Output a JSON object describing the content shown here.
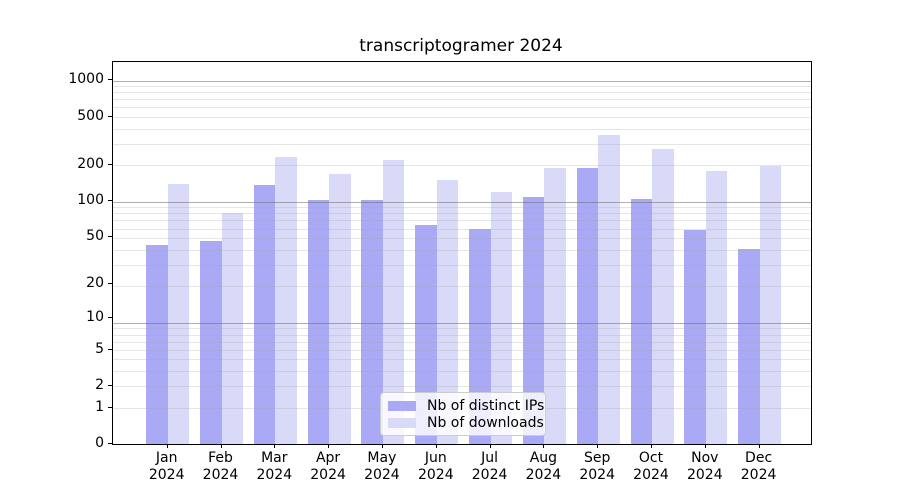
{
  "title": "transcriptogramer 2024",
  "chart_data": {
    "type": "bar",
    "title": "transcriptogramer 2024",
    "categories": [
      "Jan",
      "Feb",
      "Mar",
      "Apr",
      "May",
      "Jun",
      "Jul",
      "Aug",
      "Sep",
      "Oct",
      "Nov",
      "Dec"
    ],
    "year_label": "2024",
    "series": [
      {
        "name": "Nb of distinct IPs",
        "color": "#a9a9f5",
        "values": [
          43,
          46,
          136,
          102,
          103,
          63,
          59,
          108,
          188,
          104,
          57,
          40
        ]
      },
      {
        "name": "Nb of downloads",
        "color": "#d9d9f8",
        "values": [
          140,
          80,
          234,
          167,
          222,
          149,
          119,
          188,
          355,
          273,
          178,
          195
        ]
      }
    ],
    "yscale": "log10(y+1)",
    "ylim": [
      0,
      1420
    ],
    "y_ticks": [
      0,
      1,
      2,
      5,
      10,
      20,
      50,
      100,
      200,
      500,
      1000
    ],
    "grid": true,
    "legend_position": "lower center"
  }
}
